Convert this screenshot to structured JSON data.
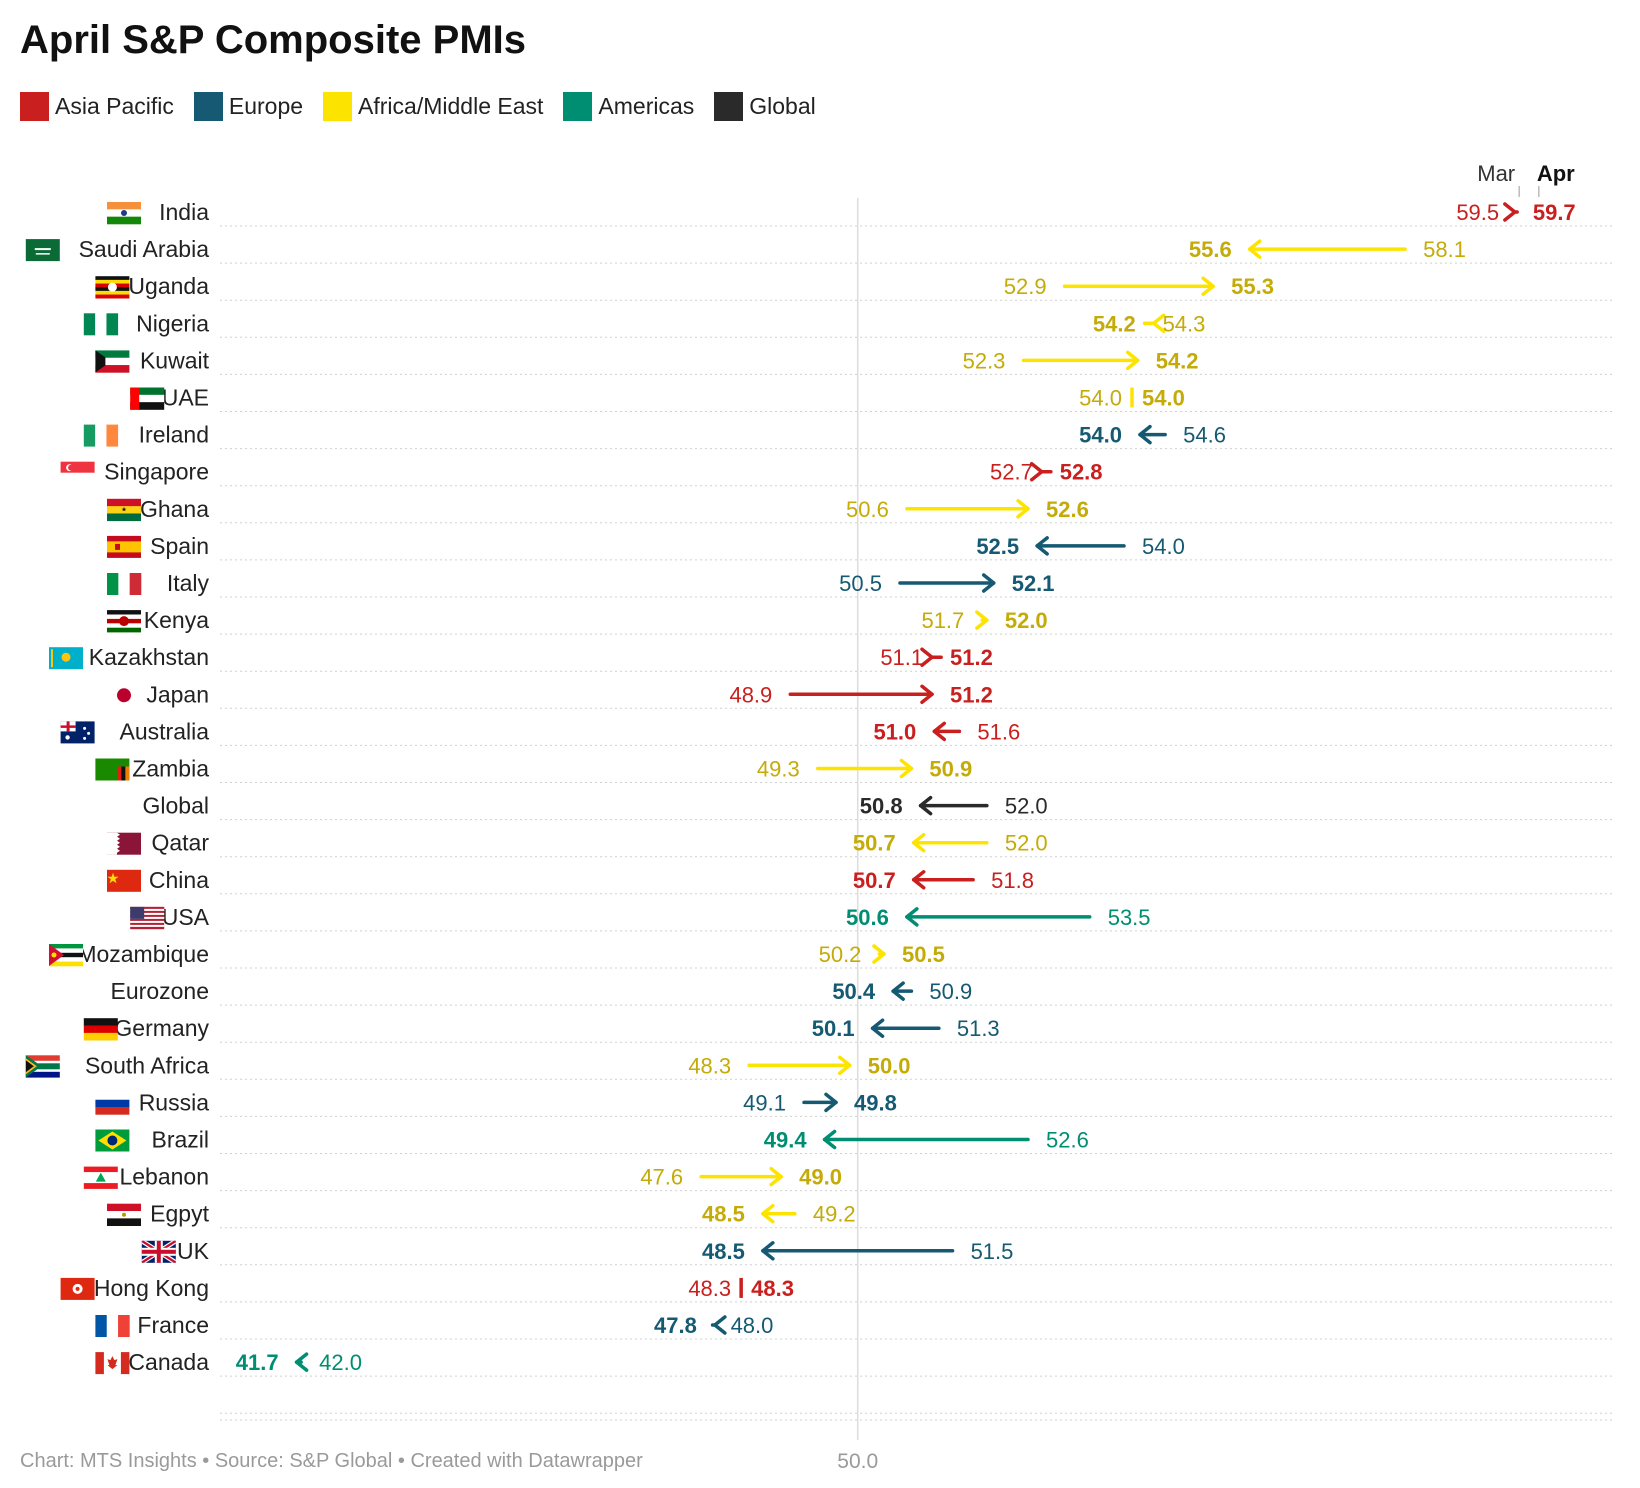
{
  "title": "April S&P Composite PMIs",
  "legend": [
    {
      "label": "Asia Pacific",
      "color": "#c9201f"
    },
    {
      "label": "Europe",
      "color": "#155a72"
    },
    {
      "label": "Africa/Middle East",
      "color": "#fde400"
    },
    {
      "label": "Americas",
      "color": "#008e72"
    },
    {
      "label": "Global",
      "color": "#2a2a2a"
    }
  ],
  "footer": "Chart: MTS Insights • Source: S&P Global • Created with Datawrapper",
  "chart_data": {
    "type": "arrow-plot",
    "title": "April S&P Composite PMIs",
    "from_label": "Mar",
    "to_label": "Apr",
    "reference_value": 50.0,
    "reference_label": "50.0",
    "xlim": [
      40.7,
      61.0
    ],
    "region_colors": {
      "Asia Pacific": {
        "line": "#c9201f",
        "text": "#c9201f"
      },
      "Europe": {
        "line": "#155a72",
        "text": "#155a72"
      },
      "Africa/Middle East": {
        "line": "#fde400",
        "text": "#c4ab08"
      },
      "Americas": {
        "line": "#008e72",
        "text": "#008e72"
      },
      "Global": {
        "line": "#2a2a2a",
        "text": "#2a2a2a"
      }
    },
    "series": [
      {
        "country": "India",
        "region": "Asia Pacific",
        "mar": 59.5,
        "apr": 59.7,
        "mar_label": "59.5",
        "apr_label": "59.7",
        "flag": "india-flag"
      },
      {
        "country": "Saudi Arabia",
        "region": "Africa/Middle East",
        "mar": 58.1,
        "apr": 55.6,
        "mar_label": "58.1",
        "apr_label": "55.6",
        "flag": "saudi-arabia-flag"
      },
      {
        "country": "Uganda",
        "region": "Africa/Middle East",
        "mar": 52.9,
        "apr": 55.3,
        "mar_label": "52.9",
        "apr_label": "55.3",
        "flag": "uganda-flag"
      },
      {
        "country": "Nigeria",
        "region": "Africa/Middle East",
        "mar": 54.3,
        "apr": 54.2,
        "mar_label": "54.3",
        "apr_label": "54.2",
        "flag": "nigeria-flag"
      },
      {
        "country": "Kuwait",
        "region": "Africa/Middle East",
        "mar": 52.3,
        "apr": 54.2,
        "mar_label": "52.3",
        "apr_label": "54.2",
        "flag": "kuwait-flag"
      },
      {
        "country": "UAE",
        "region": "Africa/Middle East",
        "mar": 54.0,
        "apr": 54.0,
        "mar_label": "54.0",
        "apr_label": "54.0",
        "flag": "uae-flag"
      },
      {
        "country": "Ireland",
        "region": "Europe",
        "mar": 54.6,
        "apr": 54.0,
        "mar_label": "54.6",
        "apr_label": "54.0",
        "flag": "ireland-flag"
      },
      {
        "country": "Singapore",
        "region": "Asia Pacific",
        "mar": 52.7,
        "apr": 52.8,
        "mar_label": "52.7",
        "apr_label": "52.8",
        "flag": "singapore-flag"
      },
      {
        "country": "Ghana",
        "region": "Africa/Middle East",
        "mar": 50.6,
        "apr": 52.6,
        "mar_label": "50.6",
        "apr_label": "52.6",
        "flag": "ghana-flag"
      },
      {
        "country": "Spain",
        "region": "Europe",
        "mar": 54.0,
        "apr": 52.5,
        "mar_label": "54.0",
        "apr_label": "52.5",
        "flag": "spain-flag"
      },
      {
        "country": "Italy",
        "region": "Europe",
        "mar": 50.5,
        "apr": 52.1,
        "mar_label": "50.5",
        "apr_label": "52.1",
        "flag": "italy-flag"
      },
      {
        "country": "Kenya",
        "region": "Africa/Middle East",
        "mar": 51.7,
        "apr": 52.0,
        "mar_label": "51.7",
        "apr_label": "52.0",
        "flag": "kenya-flag"
      },
      {
        "country": "Kazakhstan",
        "region": "Asia Pacific",
        "mar": 51.1,
        "apr": 51.2,
        "mar_label": "51.1",
        "apr_label": "51.2",
        "flag": "kazakhstan-flag"
      },
      {
        "country": "Japan",
        "region": "Asia Pacific",
        "mar": 48.9,
        "apr": 51.2,
        "mar_label": "48.9",
        "apr_label": "51.2",
        "flag": "japan-flag"
      },
      {
        "country": "Australia",
        "region": "Asia Pacific",
        "mar": 51.6,
        "apr": 51.0,
        "mar_label": "51.6",
        "apr_label": "51.0",
        "flag": "australia-flag"
      },
      {
        "country": "Zambia",
        "region": "Africa/Middle East",
        "mar": 49.3,
        "apr": 50.9,
        "mar_label": "49.3",
        "apr_label": "50.9",
        "flag": "zambia-flag"
      },
      {
        "country": "Global",
        "region": "Global",
        "mar": 52.0,
        "apr": 50.8,
        "mar_label": "52.0",
        "apr_label": "50.8",
        "flag": null
      },
      {
        "country": "Qatar",
        "region": "Africa/Middle East",
        "mar": 52.0,
        "apr": 50.7,
        "mar_label": "52.0",
        "apr_label": "50.7",
        "flag": "qatar-flag"
      },
      {
        "country": "China",
        "region": "Asia Pacific",
        "mar": 51.8,
        "apr": 50.7,
        "mar_label": "51.8",
        "apr_label": "50.7",
        "flag": "china-flag"
      },
      {
        "country": "USA",
        "region": "Americas",
        "mar": 53.5,
        "apr": 50.6,
        "mar_label": "53.5",
        "apr_label": "50.6",
        "flag": "usa-flag"
      },
      {
        "country": "Mozambique",
        "region": "Africa/Middle East",
        "mar": 50.2,
        "apr": 50.5,
        "mar_label": "50.2",
        "apr_label": "50.5",
        "flag": "mozambique-flag"
      },
      {
        "country": "Eurozone",
        "region": "Europe",
        "mar": 50.9,
        "apr": 50.4,
        "mar_label": "50.9",
        "apr_label": "50.4",
        "flag": null
      },
      {
        "country": "Germany",
        "region": "Europe",
        "mar": 51.3,
        "apr": 50.1,
        "mar_label": "51.3",
        "apr_label": "50.1",
        "flag": "germany-flag"
      },
      {
        "country": "South Africa",
        "region": "Africa/Middle East",
        "mar": 48.3,
        "apr": 50.0,
        "mar_label": "48.3",
        "apr_label": "50.0",
        "flag": "south-africa-flag"
      },
      {
        "country": "Russia",
        "region": "Europe",
        "mar": 49.1,
        "apr": 49.8,
        "mar_label": "49.1",
        "apr_label": "49.8",
        "flag": "russia-flag"
      },
      {
        "country": "Brazil",
        "region": "Americas",
        "mar": 52.6,
        "apr": 49.4,
        "mar_label": "52.6",
        "apr_label": "49.4",
        "flag": "brazil-flag"
      },
      {
        "country": "Lebanon",
        "region": "Africa/Middle East",
        "mar": 47.6,
        "apr": 49.0,
        "mar_label": "47.6",
        "apr_label": "49.0",
        "flag": "lebanon-flag"
      },
      {
        "country": "Egpyt",
        "region": "Africa/Middle East",
        "mar": 49.2,
        "apr": 48.5,
        "mar_label": "49.2",
        "apr_label": "48.5",
        "flag": "egypt-flag"
      },
      {
        "country": "UK",
        "region": "Europe",
        "mar": 51.5,
        "apr": 48.5,
        "mar_label": "51.5",
        "apr_label": "48.5",
        "flag": "uk-flag"
      },
      {
        "country": "Hong Kong",
        "region": "Asia Pacific",
        "mar": 48.3,
        "apr": 48.3,
        "mar_label": "48.3",
        "apr_label": "48.3",
        "flag": "hong-kong-flag"
      },
      {
        "country": "France",
        "region": "Europe",
        "mar": 48.0,
        "apr": 47.8,
        "mar_label": "48.0",
        "apr_label": "47.8",
        "flag": "france-flag"
      },
      {
        "country": "Canada",
        "region": "Americas",
        "mar": 42.0,
        "apr": 41.7,
        "mar_label": "42.0",
        "apr_label": "41.7",
        "flag": "canada-flag"
      }
    ]
  }
}
